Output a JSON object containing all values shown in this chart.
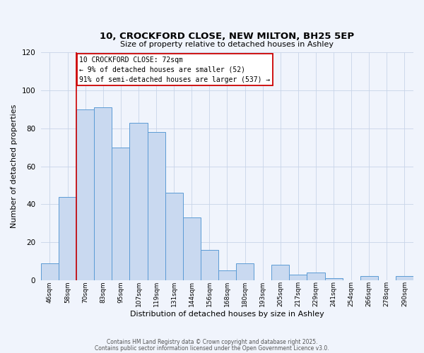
{
  "title": "10, CROCKFORD CLOSE, NEW MILTON, BH25 5EP",
  "subtitle": "Size of property relative to detached houses in Ashley",
  "xlabel": "Distribution of detached houses by size in Ashley",
  "ylabel": "Number of detached properties",
  "bin_labels": [
    "46sqm",
    "58sqm",
    "70sqm",
    "83sqm",
    "95sqm",
    "107sqm",
    "119sqm",
    "131sqm",
    "144sqm",
    "156sqm",
    "168sqm",
    "180sqm",
    "193sqm",
    "205sqm",
    "217sqm",
    "229sqm",
    "241sqm",
    "254sqm",
    "266sqm",
    "278sqm",
    "290sqm"
  ],
  "bar_heights": [
    9,
    44,
    90,
    91,
    70,
    83,
    78,
    46,
    33,
    16,
    5,
    9,
    0,
    8,
    3,
    4,
    1,
    0,
    2,
    0,
    2
  ],
  "bar_color": "#c9d9f0",
  "bar_edge_color": "#5b9bd5",
  "ylim": [
    0,
    120
  ],
  "yticks": [
    0,
    20,
    40,
    60,
    80,
    100,
    120
  ],
  "property_line_color": "#cc0000",
  "property_line_bin": 2,
  "annotation_title": "10 CROCKFORD CLOSE: 72sqm",
  "annotation_line1": "← 9% of detached houses are smaller (52)",
  "annotation_line2": "91% of semi-detached houses are larger (537) →",
  "annotation_box_color": "#ffffff",
  "annotation_box_edge": "#cc0000",
  "footer1": "Contains HM Land Registry data © Crown copyright and database right 2025.",
  "footer2": "Contains public sector information licensed under the Open Government Licence v3.0.",
  "background_color": "#f0f4fc",
  "grid_color": "#c8d4e8"
}
